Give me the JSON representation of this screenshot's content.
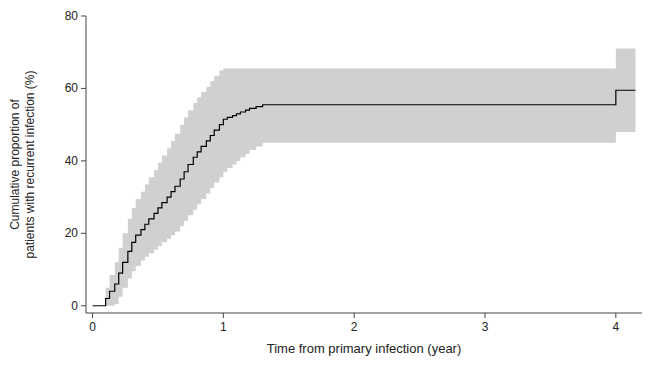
{
  "chart_data": {
    "type": "step",
    "x_label": "Time from primary infection (year)",
    "y_label": "Cumulative proportion of\npatients with recurrent infection (%)",
    "xlim": [
      -0.05,
      4.2
    ],
    "ylim": [
      -2,
      80
    ],
    "xticks": [
      0,
      1,
      2,
      3,
      4
    ],
    "yticks": [
      0,
      20,
      40,
      60,
      80
    ],
    "x": [
      0.0,
      0.1,
      0.13,
      0.17,
      0.2,
      0.23,
      0.27,
      0.3,
      0.33,
      0.37,
      0.4,
      0.43,
      0.47,
      0.5,
      0.53,
      0.57,
      0.6,
      0.63,
      0.67,
      0.7,
      0.73,
      0.77,
      0.8,
      0.83,
      0.87,
      0.9,
      0.93,
      0.97,
      1.0,
      1.03,
      1.07,
      1.1,
      1.13,
      1.17,
      1.2,
      1.25,
      1.3,
      1.4,
      1.5,
      1.6,
      1.7,
      1.8,
      1.9,
      2.0,
      2.1,
      2.2,
      2.5,
      3.0,
      3.8,
      4.0,
      4.15
    ],
    "series": [
      {
        "type": "band",
        "color": "#d0d0d0",
        "upper": [
          0.0,
          5.0,
          8.5,
          12.0,
          16.0,
          20.0,
          24.0,
          27.0,
          29.5,
          31.5,
          33.5,
          35.5,
          37.5,
          39.5,
          41.5,
          43.5,
          45.5,
          47.5,
          50.0,
          52.0,
          54.0,
          56.0,
          57.5,
          59.0,
          60.5,
          62.0,
          63.5,
          65.0,
          65.5,
          65.5,
          65.5,
          65.5,
          65.5,
          65.5,
          65.5,
          65.5,
          65.5,
          65.5,
          65.5,
          65.5,
          65.5,
          65.5,
          65.5,
          65.5,
          65.5,
          65.5,
          65.5,
          65.5,
          65.5,
          71.0,
          71.0
        ],
        "lower": [
          0.0,
          0.0,
          0.0,
          0.5,
          2.5,
          5.0,
          7.5,
          9.5,
          11.0,
          12.5,
          13.5,
          14.5,
          15.5,
          16.5,
          17.5,
          18.5,
          19.5,
          20.5,
          22.0,
          23.5,
          25.0,
          26.5,
          28.0,
          29.5,
          31.0,
          32.5,
          34.0,
          35.5,
          37.0,
          38.0,
          39.0,
          40.0,
          41.0,
          42.0,
          43.0,
          44.0,
          45.0,
          45.0,
          45.0,
          45.0,
          45.0,
          45.0,
          45.0,
          45.0,
          45.0,
          45.0,
          45.0,
          45.0,
          45.0,
          48.0,
          48.0
        ]
      },
      {
        "type": "step",
        "color": "#000000",
        "values": [
          0.0,
          2.0,
          4.0,
          6.0,
          9.0,
          12.0,
          15.0,
          17.5,
          19.5,
          21.0,
          22.5,
          24.0,
          25.5,
          27.0,
          28.5,
          30.0,
          31.5,
          33.0,
          35.0,
          37.0,
          39.0,
          41.0,
          42.5,
          44.0,
          45.5,
          47.0,
          48.5,
          50.0,
          51.5,
          52.0,
          52.5,
          53.0,
          53.5,
          54.0,
          54.5,
          55.0,
          55.5,
          55.5,
          55.5,
          55.5,
          55.5,
          55.5,
          55.5,
          55.5,
          55.5,
          55.5,
          55.5,
          55.5,
          55.5,
          59.5,
          59.5
        ]
      }
    ]
  }
}
